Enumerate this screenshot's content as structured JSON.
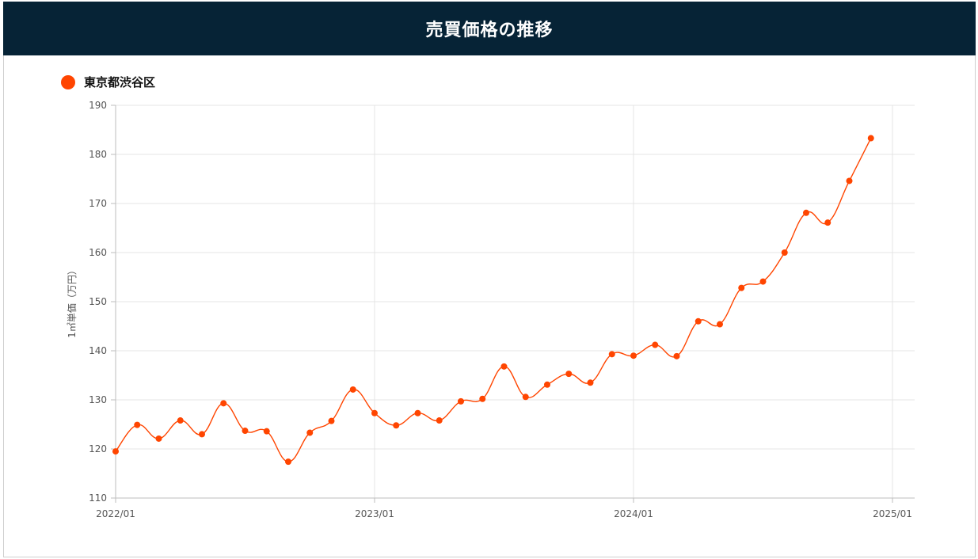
{
  "header": {
    "title": "売買価格の推移"
  },
  "colors": {
    "header_bg": "#062336",
    "series": "#ff4500",
    "grid": "#e4e4e4",
    "axis": "#bdbdbd"
  },
  "chart_data": {
    "type": "line",
    "ylabel": "1㎡単価（万円）",
    "ylim": [
      110,
      190
    ],
    "yticks": [
      110,
      120,
      130,
      140,
      150,
      160,
      170,
      180,
      190
    ],
    "xlim": [
      "2022/01",
      "2025/01"
    ],
    "xticks": [
      "2022/01",
      "2023/01",
      "2024/01",
      "2025/01"
    ],
    "grid": true,
    "legend_position": "top-left",
    "series": [
      {
        "name": "東京都渋谷区",
        "x": [
          "2022/01",
          "2022/02",
          "2022/03",
          "2022/04",
          "2022/05",
          "2022/06",
          "2022/07",
          "2022/08",
          "2022/09",
          "2022/10",
          "2022/11",
          "2022/12",
          "2023/01",
          "2023/02",
          "2023/03",
          "2023/04",
          "2023/05",
          "2023/06",
          "2023/07",
          "2023/08",
          "2023/09",
          "2023/10",
          "2023/11",
          "2023/12",
          "2024/01",
          "2024/02",
          "2024/03",
          "2024/04",
          "2024/05",
          "2024/06",
          "2024/07",
          "2024/08",
          "2024/09",
          "2024/10",
          "2024/11",
          "2024/12"
        ],
        "values": [
          119.5,
          124.9,
          122.1,
          125.8,
          123.0,
          129.3,
          123.7,
          123.6,
          117.4,
          123.3,
          125.7,
          132.1,
          127.3,
          124.8,
          127.3,
          125.8,
          129.7,
          130.2,
          136.8,
          130.6,
          133.1,
          135.3,
          133.5,
          139.3,
          139.0,
          141.2,
          138.9,
          146.0,
          145.4,
          152.8,
          154.1,
          160.0,
          168.1,
          166.1,
          174.6,
          183.3
        ]
      }
    ]
  }
}
